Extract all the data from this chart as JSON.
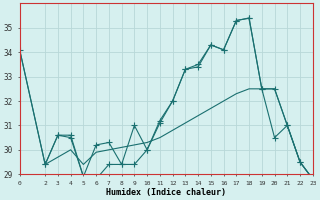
{
  "xlabel": "Humidex (Indice chaleur)",
  "bg_color": "#d6f0ef",
  "line_color": "#1a7070",
  "grid_color": "#b8d8d8",
  "xlim": [
    0,
    23
  ],
  "ylim": [
    29,
    36
  ],
  "yticks": [
    29,
    30,
    31,
    32,
    33,
    34,
    35
  ],
  "xticks": [
    0,
    2,
    3,
    4,
    5,
    6,
    7,
    8,
    9,
    10,
    11,
    12,
    13,
    14,
    15,
    16,
    17,
    18,
    19,
    20,
    21,
    22,
    23
  ],
  "line1_x": [
    0,
    2,
    3,
    4,
    5,
    6,
    7,
    8,
    9,
    10,
    11,
    12,
    13,
    14,
    15,
    16,
    17,
    18,
    19,
    20,
    21,
    22,
    23
  ],
  "line1_y": [
    34.1,
    29.4,
    30.6,
    30.6,
    28.9,
    30.2,
    30.3,
    29.4,
    31.0,
    30.0,
    31.2,
    32.0,
    33.3,
    33.5,
    34.3,
    34.1,
    35.3,
    35.4,
    32.5,
    32.5,
    31.0,
    29.5,
    28.8
  ],
  "line2_x": [
    2,
    3,
    4,
    5,
    6,
    7,
    8,
    9,
    10,
    11,
    12,
    13,
    14,
    15,
    16,
    17,
    18,
    19,
    20,
    21,
    22,
    23
  ],
  "line2_y": [
    29.4,
    30.6,
    30.5,
    28.9,
    28.8,
    29.4,
    29.4,
    29.4,
    30.0,
    31.1,
    32.0,
    33.3,
    33.4,
    34.3,
    34.1,
    35.3,
    35.4,
    32.5,
    30.5,
    31.0,
    29.5,
    28.8
  ],
  "line3_x": [
    0,
    2,
    3,
    4,
    5,
    6,
    7,
    8,
    9,
    10,
    11,
    12,
    13,
    14,
    15,
    16,
    17,
    18,
    19,
    20,
    21,
    22,
    23
  ],
  "line3_y": [
    34.1,
    29.4,
    29.7,
    30.0,
    29.4,
    29.9,
    30.0,
    30.1,
    30.2,
    30.3,
    30.5,
    30.8,
    31.1,
    31.4,
    31.7,
    32.0,
    32.3,
    32.5,
    32.5,
    32.5,
    31.0,
    29.5,
    28.8
  ]
}
